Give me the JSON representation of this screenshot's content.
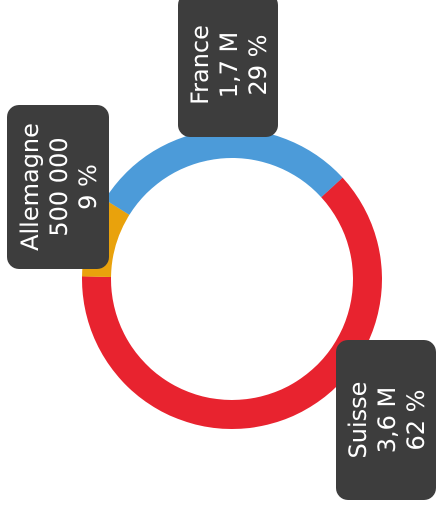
{
  "chart_data": {
    "type": "pie",
    "variant": "donut",
    "label_orientation": "rotated 90° counter-clockwise",
    "categories": [
      "Suisse",
      "Allemagne",
      "France"
    ],
    "values": [
      3600000,
      500000,
      1700000
    ],
    "percent": [
      62,
      9,
      29
    ],
    "colors": [
      "#E8232F",
      "#E9A20C",
      "#4C9BD9"
    ],
    "labels": [
      {
        "name": "Suisse",
        "value_text": "3,6 M",
        "percent_text": "62 %"
      },
      {
        "name": "Allemagne",
        "value_text": "500 000",
        "percent_text": "9 %"
      },
      {
        "name": "France",
        "value_text": "1,7 M",
        "percent_text": "29 %"
      }
    ],
    "label_box_color": "#3D3D3D",
    "label_text_color": "#FFFFFF"
  }
}
